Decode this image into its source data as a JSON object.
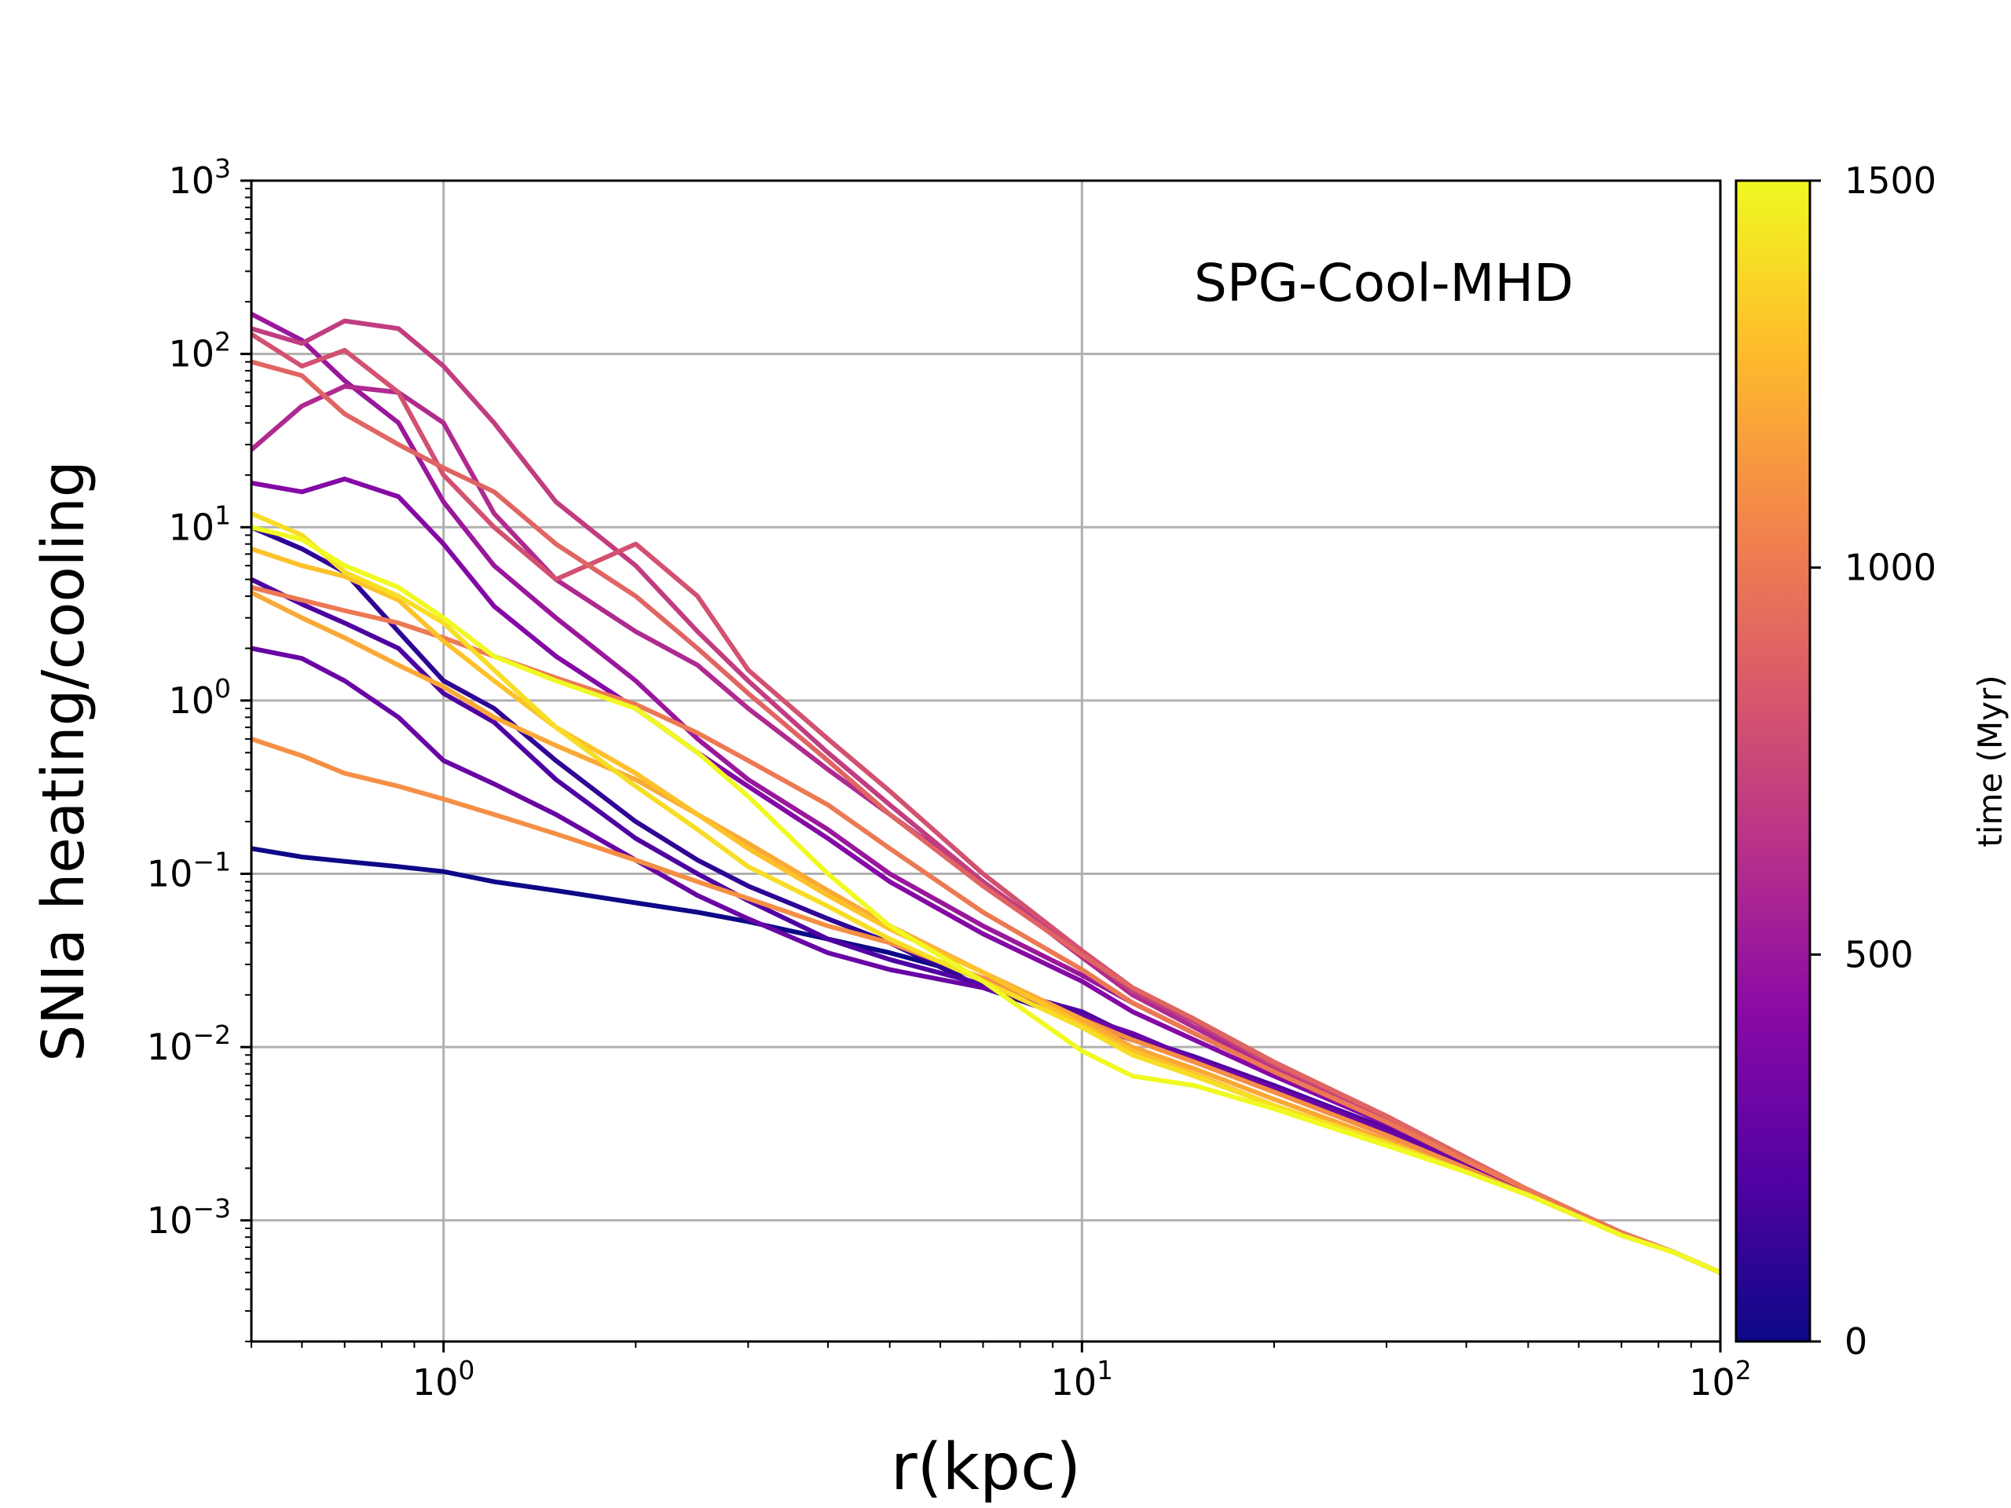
{
  "chart_data": {
    "type": "line",
    "xlabel": "r(kpc)",
    "ylabel": "SNIa heating/cooling",
    "annotation": "SPG-Cool-MHD",
    "xscale": "log",
    "yscale": "log",
    "xlim": [
      0.5,
      100
    ],
    "ylim": [
      0.0002,
      1000
    ],
    "grid": true,
    "x_ticks": [
      {
        "value": 1,
        "base": "10",
        "exp": "0"
      },
      {
        "value": 10,
        "base": "10",
        "exp": "1"
      },
      {
        "value": 100,
        "base": "10",
        "exp": "2"
      }
    ],
    "y_ticks": [
      {
        "value": 0.001,
        "base": "10",
        "exp": "−3"
      },
      {
        "value": 0.01,
        "base": "10",
        "exp": "−2"
      },
      {
        "value": 0.1,
        "base": "10",
        "exp": "−1"
      },
      {
        "value": 1,
        "base": "10",
        "exp": "0"
      },
      {
        "value": 10,
        "base": "10",
        "exp": "1"
      },
      {
        "value": 100,
        "base": "10",
        "exp": "2"
      },
      {
        "value": 1000,
        "base": "10",
        "exp": "3"
      }
    ],
    "colorbar": {
      "label": "time (Myr)",
      "range": [
        0,
        1500
      ],
      "ticks": [
        "0",
        "500",
        "1000",
        "1500"
      ],
      "colormap": [
        "#0d0887",
        "#5302a3",
        "#8b0aa5",
        "#b83289",
        "#db5c68",
        "#f48849",
        "#febd2a",
        "#f0f921"
      ]
    },
    "x": [
      0.5,
      0.6,
      0.7,
      0.85,
      1.0,
      1.2,
      1.5,
      2.0,
      2.5,
      3.0,
      4.0,
      5.0,
      7.0,
      10.0,
      12.0,
      15.0,
      20.0,
      30.0,
      40.0,
      50.0,
      60.0,
      70.0,
      85.0,
      100.0
    ],
    "series": [
      {
        "name": "t=0 Myr",
        "time": 0,
        "values": [
          0.14,
          0.125,
          0.118,
          0.11,
          0.103,
          0.09,
          0.08,
          0.068,
          0.06,
          0.053,
          0.042,
          0.035,
          0.025,
          0.015,
          0.011,
          0.0085,
          0.006,
          0.0033,
          0.0021,
          0.0015,
          0.0011,
          0.00085,
          0.00065,
          0.0005
        ]
      },
      {
        "name": "t=100 Myr",
        "time": 100,
        "values": [
          10.0,
          7.5,
          5.5,
          2.5,
          1.3,
          0.9,
          0.45,
          0.2,
          0.12,
          0.085,
          0.055,
          0.04,
          0.022,
          0.014,
          0.011,
          0.0085,
          0.0058,
          0.0033,
          0.0021,
          0.0015,
          0.0011,
          0.00085,
          0.00065,
          0.0005
        ]
      },
      {
        "name": "t=200 Myr",
        "time": 200,
        "values": [
          5.0,
          3.6,
          2.8,
          2.0,
          1.1,
          0.75,
          0.35,
          0.16,
          0.1,
          0.07,
          0.042,
          0.032,
          0.023,
          0.016,
          0.0115,
          0.0088,
          0.006,
          0.0034,
          0.0021,
          0.0015,
          0.0011,
          0.00085,
          0.00065,
          0.0005
        ]
      },
      {
        "name": "t=300 Myr",
        "time": 300,
        "values": [
          2.0,
          1.75,
          1.3,
          0.8,
          0.45,
          0.33,
          0.22,
          0.12,
          0.075,
          0.055,
          0.035,
          0.028,
          0.022,
          0.015,
          0.012,
          0.0085,
          0.0058,
          0.0033,
          0.0021,
          0.0015,
          0.0011,
          0.00085,
          0.00065,
          0.0005
        ]
      },
      {
        "name": "t=400 Myr",
        "time": 400,
        "values": [
          18.0,
          16.0,
          19.0,
          15.0,
          8.0,
          3.5,
          1.8,
          0.9,
          0.5,
          0.32,
          0.16,
          0.09,
          0.045,
          0.024,
          0.016,
          0.011,
          0.0068,
          0.0036,
          0.0022,
          0.0015,
          0.0011,
          0.00085,
          0.00065,
          0.0005
        ]
      },
      {
        "name": "t=500 Myr",
        "time": 500,
        "values": [
          170.0,
          120.0,
          70.0,
          40.0,
          14.0,
          6.0,
          3.0,
          1.3,
          0.6,
          0.35,
          0.18,
          0.1,
          0.05,
          0.026,
          0.018,
          0.012,
          0.0072,
          0.0037,
          0.0022,
          0.0015,
          0.0011,
          0.00085,
          0.00065,
          0.0005
        ]
      },
      {
        "name": "t=600 Myr",
        "time": 600,
        "values": [
          28.0,
          50.0,
          65.0,
          60.0,
          40.0,
          12.0,
          5.0,
          2.5,
          1.6,
          0.9,
          0.4,
          0.22,
          0.09,
          0.033,
          0.02,
          0.013,
          0.0075,
          0.0038,
          0.0022,
          0.0015,
          0.0011,
          0.00085,
          0.00065,
          0.0005
        ]
      },
      {
        "name": "t=700 Myr",
        "time": 700,
        "values": [
          140.0,
          115.0,
          155.0,
          140.0,
          85.0,
          40.0,
          14.0,
          6.0,
          2.5,
          1.3,
          0.5,
          0.25,
          0.09,
          0.035,
          0.021,
          0.014,
          0.0078,
          0.0039,
          0.0022,
          0.0015,
          0.0011,
          0.00085,
          0.00065,
          0.0005
        ]
      },
      {
        "name": "t=800 Myr",
        "time": 800,
        "values": [
          130.0,
          85.0,
          105.0,
          60.0,
          20.0,
          10.0,
          5.0,
          8.0,
          4.0,
          1.5,
          0.6,
          0.3,
          0.1,
          0.036,
          0.022,
          0.0145,
          0.008,
          0.004,
          0.0023,
          0.0015,
          0.0011,
          0.00085,
          0.00065,
          0.0005
        ]
      },
      {
        "name": "t=900 Myr",
        "time": 900,
        "values": [
          90.0,
          75.0,
          45.0,
          30.0,
          22.0,
          16.0,
          8.0,
          4.0,
          2.0,
          1.1,
          0.45,
          0.22,
          0.085,
          0.034,
          0.022,
          0.0145,
          0.0082,
          0.004,
          0.0023,
          0.0015,
          0.0011,
          0.00085,
          0.00065,
          0.0005
        ]
      },
      {
        "name": "t=1000 Myr",
        "time": 1000,
        "values": [
          4.5,
          3.8,
          3.3,
          2.8,
          2.3,
          1.8,
          1.35,
          0.95,
          0.65,
          0.45,
          0.25,
          0.14,
          0.06,
          0.028,
          0.018,
          0.012,
          0.0072,
          0.0037,
          0.0022,
          0.0015,
          0.0011,
          0.00085,
          0.00065,
          0.0005
        ]
      },
      {
        "name": "t=1100 Myr",
        "time": 1100,
        "values": [
          0.6,
          0.48,
          0.38,
          0.32,
          0.27,
          0.22,
          0.17,
          0.12,
          0.09,
          0.072,
          0.05,
          0.04,
          0.025,
          0.0145,
          0.011,
          0.0082,
          0.0055,
          0.0031,
          0.002,
          0.0014,
          0.00105,
          0.00082,
          0.00065,
          0.0005
        ]
      },
      {
        "name": "t=1200 Myr",
        "time": 1200,
        "values": [
          4.2,
          3.0,
          2.3,
          1.6,
          1.2,
          0.8,
          0.55,
          0.35,
          0.22,
          0.15,
          0.08,
          0.05,
          0.027,
          0.0145,
          0.01,
          0.0075,
          0.005,
          0.0029,
          0.0019,
          0.0014,
          0.00105,
          0.00082,
          0.00065,
          0.0005
        ]
      },
      {
        "name": "t=1300 Myr",
        "time": 1300,
        "values": [
          7.5,
          6.0,
          5.2,
          3.8,
          2.2,
          1.3,
          0.7,
          0.38,
          0.22,
          0.14,
          0.075,
          0.048,
          0.027,
          0.0135,
          0.0095,
          0.007,
          0.0046,
          0.0028,
          0.0019,
          0.0014,
          0.00105,
          0.00082,
          0.00065,
          0.0005
        ]
      },
      {
        "name": "t=1400 Myr",
        "time": 1400,
        "values": [
          12.0,
          9.0,
          5.5,
          4.0,
          2.8,
          1.5,
          0.7,
          0.32,
          0.18,
          0.11,
          0.065,
          0.042,
          0.024,
          0.013,
          0.009,
          0.0068,
          0.0046,
          0.0028,
          0.0019,
          0.0014,
          0.00105,
          0.00082,
          0.00065,
          0.0005
        ]
      },
      {
        "name": "t=1500 Myr",
        "time": 1500,
        "values": [
          10.0,
          8.5,
          6.0,
          4.5,
          3.0,
          1.8,
          1.3,
          0.9,
          0.5,
          0.28,
          0.1,
          0.05,
          0.024,
          0.0095,
          0.0068,
          0.006,
          0.0044,
          0.0027,
          0.0019,
          0.0014,
          0.00105,
          0.00082,
          0.00065,
          0.0005
        ]
      }
    ]
  }
}
